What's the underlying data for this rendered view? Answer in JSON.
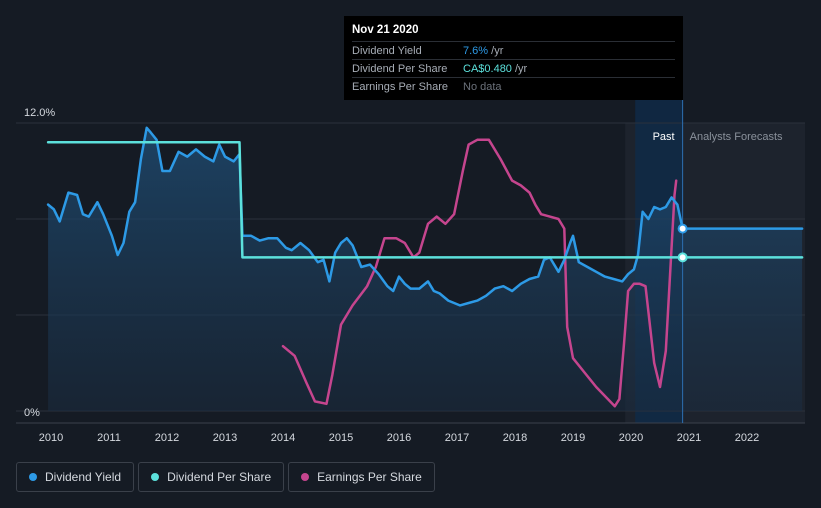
{
  "chart_data": {
    "type": "line",
    "y_axis": {
      "top_label": "12.0%",
      "bottom_label": "0%",
      "ylim": [
        0,
        12
      ]
    },
    "x_ticks": [
      "2010",
      "2011",
      "2012",
      "2013",
      "2014",
      "2015",
      "2016",
      "2017",
      "2018",
      "2019",
      "2020",
      "2021",
      "2022"
    ],
    "xlim": [
      2010.0,
      2022.95
    ],
    "regions": {
      "past_label": "Past",
      "forecast_label": "Analysts Forecasts",
      "past_start": 2019.9,
      "divider": 2020.89
    },
    "series": [
      {
        "name": "Dividend Yield",
        "color": "#2d9ae6",
        "points": [
          [
            2009.95,
            8.6
          ],
          [
            2010.05,
            8.4
          ],
          [
            2010.15,
            7.9
          ],
          [
            2010.3,
            9.1
          ],
          [
            2010.45,
            9.0
          ],
          [
            2010.55,
            8.2
          ],
          [
            2010.65,
            8.1
          ],
          [
            2010.8,
            8.7
          ],
          [
            2010.9,
            8.2
          ],
          [
            2011.05,
            7.3
          ],
          [
            2011.15,
            6.5
          ],
          [
            2011.25,
            7.0
          ],
          [
            2011.35,
            8.3
          ],
          [
            2011.45,
            8.7
          ],
          [
            2011.55,
            10.5
          ],
          [
            2011.65,
            11.8
          ],
          [
            2011.72,
            11.6
          ],
          [
            2011.82,
            11.3
          ],
          [
            2011.92,
            10.0
          ],
          [
            2012.05,
            10.0
          ],
          [
            2012.2,
            10.8
          ],
          [
            2012.35,
            10.6
          ],
          [
            2012.5,
            10.9
          ],
          [
            2012.65,
            10.6
          ],
          [
            2012.8,
            10.4
          ],
          [
            2012.9,
            11.1
          ],
          [
            2013.0,
            10.6
          ],
          [
            2013.15,
            10.4
          ],
          [
            2013.25,
            10.7
          ],
          [
            2013.3,
            7.3
          ],
          [
            2013.45,
            7.3
          ],
          [
            2013.6,
            7.1
          ],
          [
            2013.75,
            7.2
          ],
          [
            2013.9,
            7.2
          ],
          [
            2014.05,
            6.8
          ],
          [
            2014.15,
            6.7
          ],
          [
            2014.3,
            7.0
          ],
          [
            2014.45,
            6.7
          ],
          [
            2014.6,
            6.2
          ],
          [
            2014.7,
            6.3
          ],
          [
            2014.8,
            5.4
          ],
          [
            2014.9,
            6.6
          ],
          [
            2015.0,
            7.0
          ],
          [
            2015.1,
            7.2
          ],
          [
            2015.2,
            6.9
          ],
          [
            2015.35,
            6.0
          ],
          [
            2015.5,
            6.1
          ],
          [
            2015.65,
            5.7
          ],
          [
            2015.8,
            5.2
          ],
          [
            2015.9,
            5.0
          ],
          [
            2016.0,
            5.6
          ],
          [
            2016.1,
            5.3
          ],
          [
            2016.2,
            5.1
          ],
          [
            2016.35,
            5.1
          ],
          [
            2016.5,
            5.4
          ],
          [
            2016.6,
            5.0
          ],
          [
            2016.7,
            4.9
          ],
          [
            2016.85,
            4.6
          ],
          [
            2016.95,
            4.5
          ],
          [
            2017.05,
            4.4
          ],
          [
            2017.2,
            4.5
          ],
          [
            2017.35,
            4.6
          ],
          [
            2017.5,
            4.8
          ],
          [
            2017.65,
            5.1
          ],
          [
            2017.8,
            5.2
          ],
          [
            2017.95,
            5.0
          ],
          [
            2018.1,
            5.3
          ],
          [
            2018.25,
            5.5
          ],
          [
            2018.4,
            5.6
          ],
          [
            2018.5,
            6.3
          ],
          [
            2018.6,
            6.4
          ],
          [
            2018.75,
            5.8
          ],
          [
            2018.85,
            6.3
          ],
          [
            2018.95,
            7.0
          ],
          [
            2019.0,
            7.3
          ],
          [
            2019.1,
            6.2
          ],
          [
            2019.25,
            6.0
          ],
          [
            2019.4,
            5.8
          ],
          [
            2019.55,
            5.6
          ],
          [
            2019.7,
            5.5
          ],
          [
            2019.85,
            5.4
          ],
          [
            2019.95,
            5.7
          ],
          [
            2020.05,
            5.9
          ],
          [
            2020.12,
            6.5
          ],
          [
            2020.2,
            8.3
          ],
          [
            2020.3,
            8.0
          ],
          [
            2020.4,
            8.5
          ],
          [
            2020.5,
            8.4
          ],
          [
            2020.6,
            8.5
          ],
          [
            2020.7,
            8.9
          ],
          [
            2020.8,
            8.6
          ],
          [
            2020.89,
            7.6
          ],
          [
            2022.95,
            7.6
          ]
        ]
      },
      {
        "name": "Dividend Per Share",
        "color": "#5ce1dc",
        "points": [
          [
            2009.95,
            11.2
          ],
          [
            2013.25,
            11.2
          ],
          [
            2013.3,
            6.4
          ],
          [
            2020.89,
            6.4
          ],
          [
            2022.95,
            6.4
          ]
        ]
      },
      {
        "name": "Earnings Per Share",
        "color": "#c5458e",
        "points": [
          [
            2014.0,
            2.7
          ],
          [
            2014.2,
            2.3
          ],
          [
            2014.4,
            1.2
          ],
          [
            2014.55,
            0.4
          ],
          [
            2014.75,
            0.3
          ],
          [
            2014.85,
            1.5
          ],
          [
            2015.0,
            3.6
          ],
          [
            2015.2,
            4.4
          ],
          [
            2015.45,
            5.2
          ],
          [
            2015.6,
            6.0
          ],
          [
            2015.75,
            7.2
          ],
          [
            2015.95,
            7.2
          ],
          [
            2016.1,
            7.0
          ],
          [
            2016.25,
            6.4
          ],
          [
            2016.35,
            6.6
          ],
          [
            2016.5,
            7.8
          ],
          [
            2016.65,
            8.1
          ],
          [
            2016.8,
            7.8
          ],
          [
            2016.95,
            8.2
          ],
          [
            2017.1,
            10.0
          ],
          [
            2017.2,
            11.1
          ],
          [
            2017.35,
            11.3
          ],
          [
            2017.55,
            11.3
          ],
          [
            2017.75,
            10.5
          ],
          [
            2017.95,
            9.6
          ],
          [
            2018.1,
            9.4
          ],
          [
            2018.25,
            9.1
          ],
          [
            2018.35,
            8.6
          ],
          [
            2018.45,
            8.2
          ],
          [
            2018.6,
            8.1
          ],
          [
            2018.75,
            8.0
          ],
          [
            2018.85,
            7.6
          ],
          [
            2018.9,
            3.5
          ],
          [
            2019.0,
            2.2
          ],
          [
            2019.2,
            1.6
          ],
          [
            2019.4,
            1.0
          ],
          [
            2019.6,
            0.5
          ],
          [
            2019.72,
            0.2
          ],
          [
            2019.8,
            0.5
          ],
          [
            2019.88,
            2.8
          ],
          [
            2019.95,
            5.0
          ],
          [
            2020.05,
            5.3
          ],
          [
            2020.15,
            5.3
          ],
          [
            2020.25,
            5.2
          ],
          [
            2020.4,
            2.0
          ],
          [
            2020.5,
            1.0
          ],
          [
            2020.6,
            2.5
          ],
          [
            2020.75,
            9.0
          ],
          [
            2020.78,
            9.6
          ]
        ]
      }
    ],
    "markers": [
      {
        "series": "Dividend Yield",
        "x": 2020.89,
        "y": 7.6
      },
      {
        "series": "Dividend Per Share",
        "x": 2020.89,
        "y": 6.4
      }
    ]
  },
  "tooltip": {
    "date": "Nov 21 2020",
    "rows": [
      {
        "label": "Dividend Yield",
        "value": "7.6%",
        "suffix": " /yr",
        "color": "#2d9ae6"
      },
      {
        "label": "Dividend Per Share",
        "value": "CA$0.480",
        "suffix": " /yr",
        "color": "#5ce1dc"
      },
      {
        "label": "Earnings Per Share",
        "value": "No data",
        "suffix": "",
        "color": "#6b717a"
      }
    ]
  },
  "legend": [
    {
      "label": "Dividend Yield",
      "color": "#2d9ae6"
    },
    {
      "label": "Dividend Per Share",
      "color": "#5ce1dc"
    },
    {
      "label": "Earnings Per Share",
      "color": "#c5458e"
    }
  ]
}
